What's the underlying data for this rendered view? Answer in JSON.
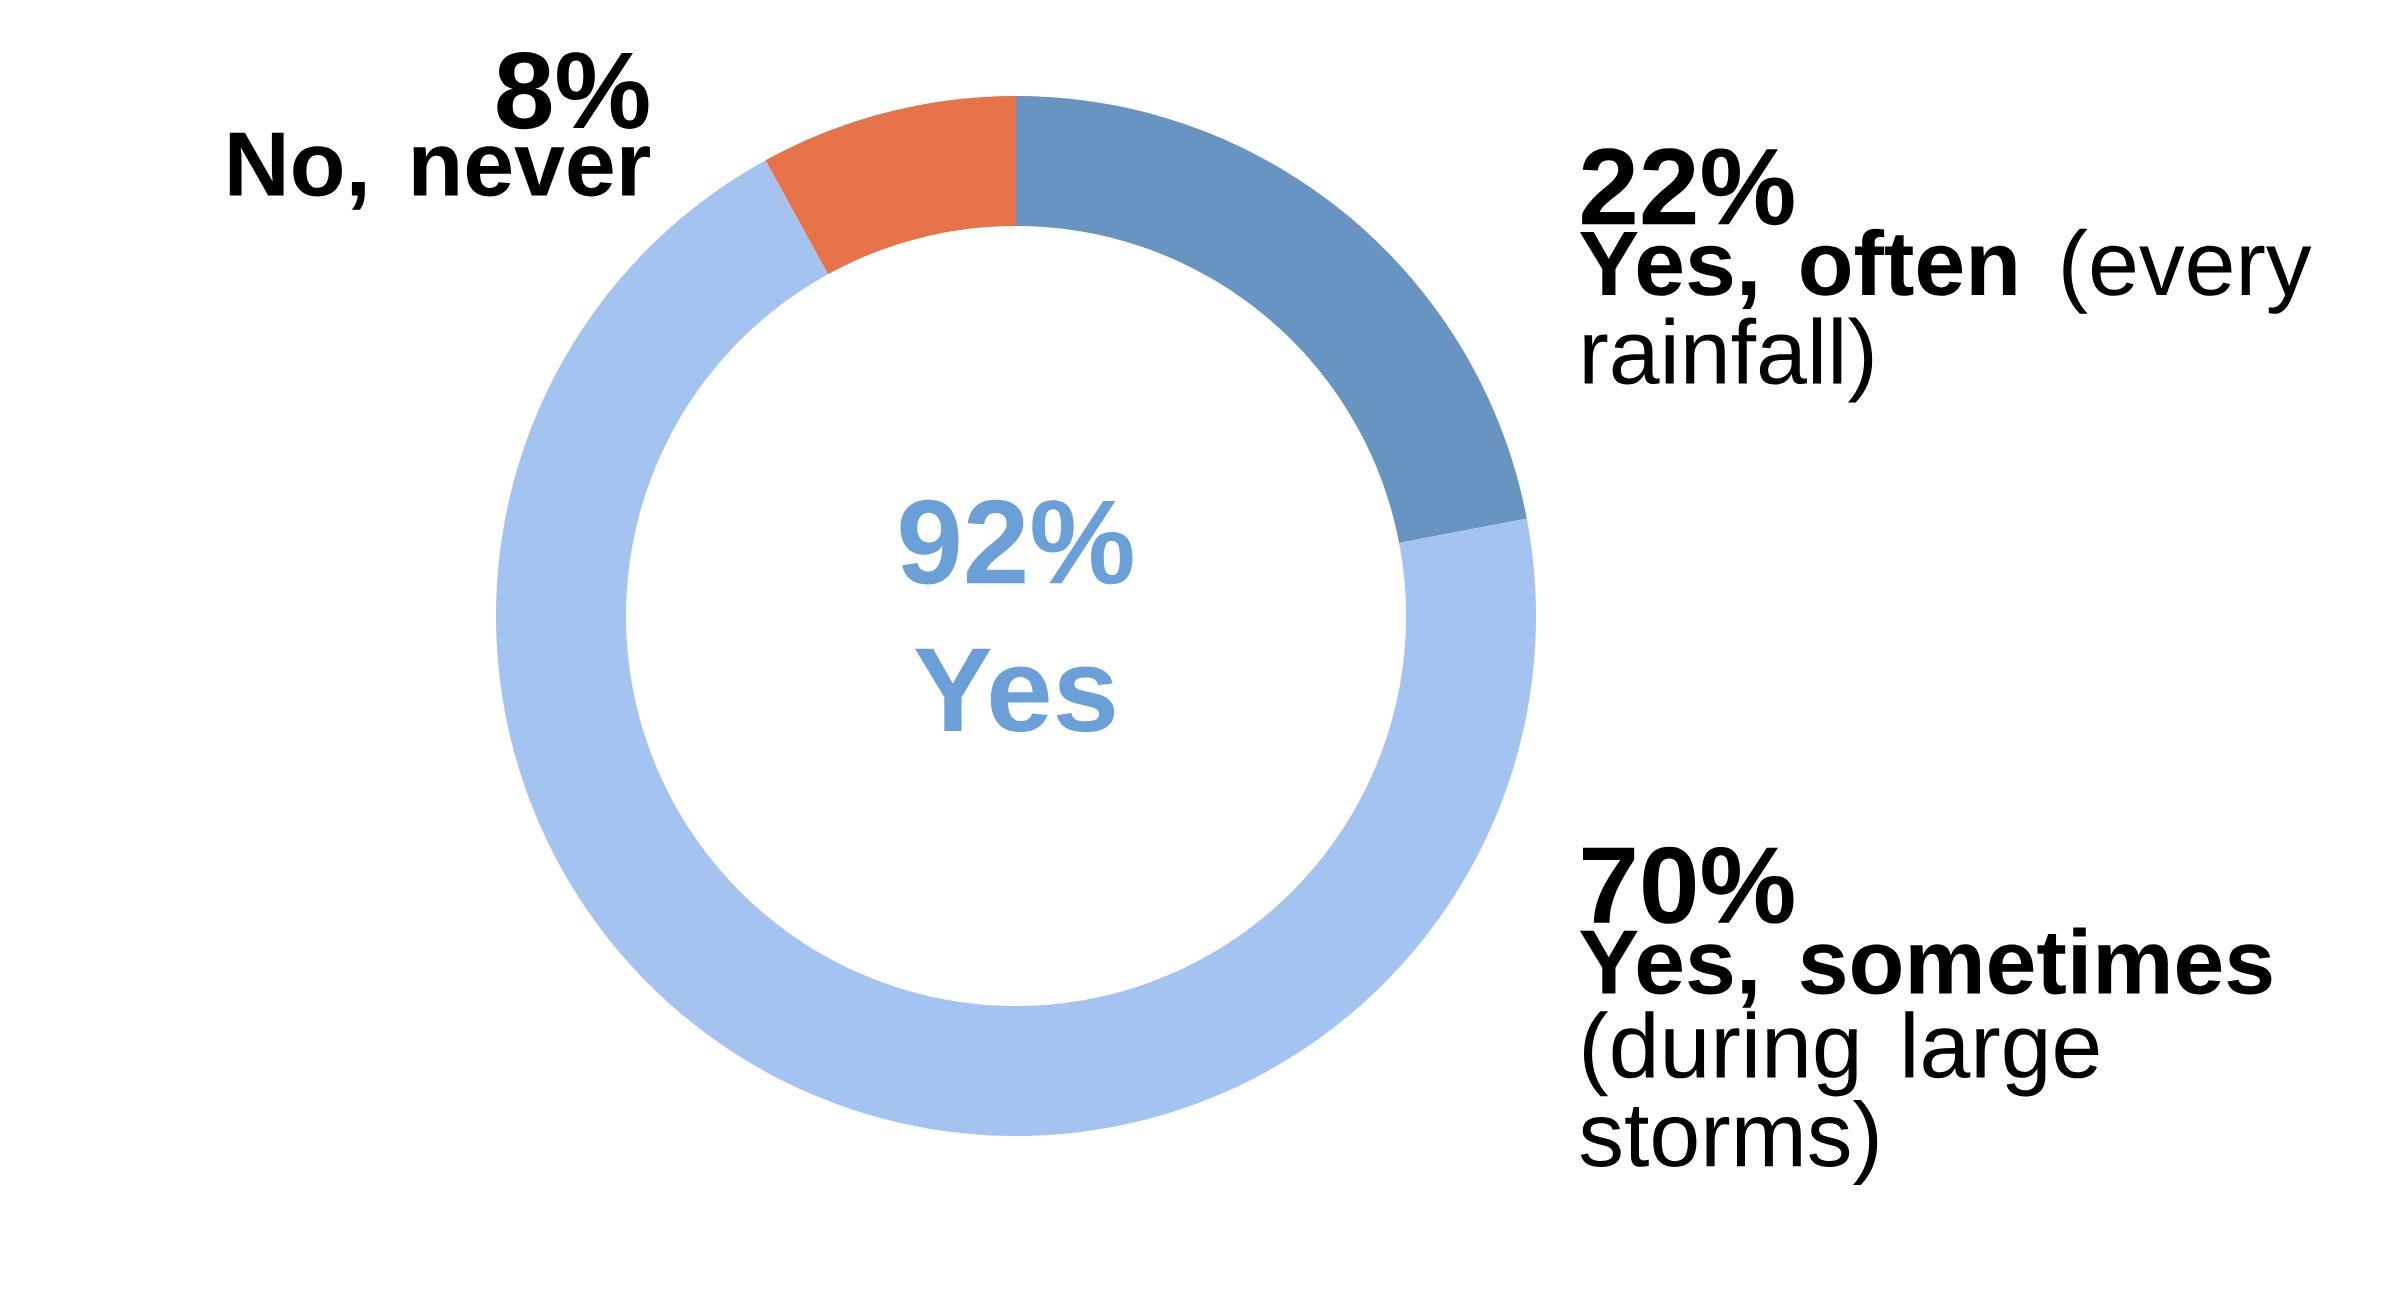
{
  "chart_data": {
    "type": "donut",
    "categories": [
      "**Yes, often** (every rainfall)",
      "**Yes, sometimes** (during large storms)",
      "**No, never**"
    ],
    "values": [
      22,
      70,
      8
    ],
    "value_labels": [
      "22%",
      "70%",
      "8%"
    ],
    "colors": [
      "#6794c1",
      "#a5c3f0",
      "#e6734a"
    ],
    "annotations": [
      "92%",
      "Yes"
    ]
  }
}
